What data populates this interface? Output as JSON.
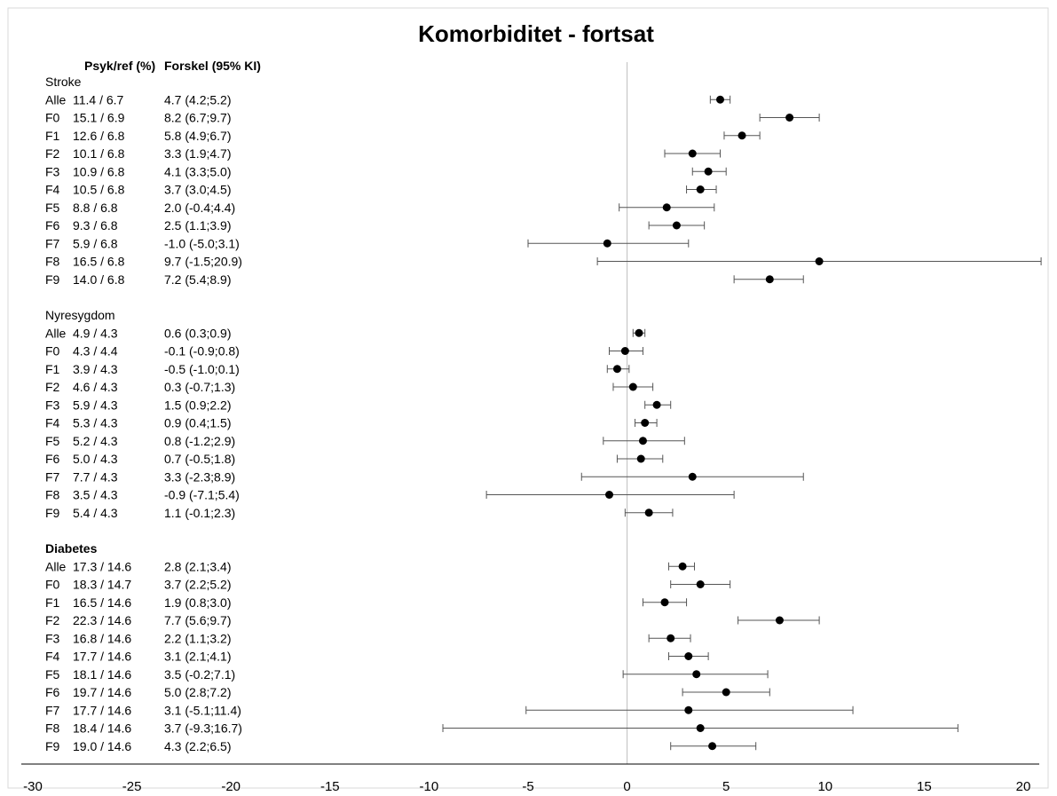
{
  "chart_data": {
    "type": "scatter",
    "subtype": "forest-plot",
    "title": "Komorbiditet - fortsat",
    "column_headers": [
      "Psyk/ref (%)",
      "Forskel (95% KI)"
    ],
    "xlim": [
      -30,
      20
    ],
    "x_ticks": [
      -30,
      -25,
      -20,
      -15,
      -10,
      -5,
      0,
      5,
      10,
      15,
      20
    ],
    "reference_line": 0,
    "grid": false,
    "groups": [
      {
        "name": "Stroke",
        "bold": false,
        "rows": [
          {
            "label": "Alle",
            "ratio": "11.4 / 6.7",
            "ci_text": "4.7 (4.2;5.2)",
            "est": 4.7,
            "lo": 4.2,
            "hi": 5.2
          },
          {
            "label": "F0",
            "ratio": "15.1 / 6.9",
            "ci_text": "8.2 (6.7;9.7)",
            "est": 8.2,
            "lo": 6.7,
            "hi": 9.7
          },
          {
            "label": "F1",
            "ratio": "12.6 / 6.8",
            "ci_text": "5.8 (4.9;6.7)",
            "est": 5.8,
            "lo": 4.9,
            "hi": 6.7
          },
          {
            "label": "F2",
            "ratio": "10.1 / 6.8",
            "ci_text": "3.3 (1.9;4.7)",
            "est": 3.3,
            "lo": 1.9,
            "hi": 4.7
          },
          {
            "label": "F3",
            "ratio": "10.9 / 6.8",
            "ci_text": "4.1 (3.3;5.0)",
            "est": 4.1,
            "lo": 3.3,
            "hi": 5.0
          },
          {
            "label": "F4",
            "ratio": "10.5 / 6.8",
            "ci_text": "3.7 (3.0;4.5)",
            "est": 3.7,
            "lo": 3.0,
            "hi": 4.5
          },
          {
            "label": "F5",
            "ratio": "8.8 / 6.8",
            "ci_text": "2.0 (-0.4;4.4)",
            "est": 2.0,
            "lo": -0.4,
            "hi": 4.4
          },
          {
            "label": "F6",
            "ratio": "9.3 / 6.8",
            "ci_text": "2.5 (1.1;3.9)",
            "est": 2.5,
            "lo": 1.1,
            "hi": 3.9
          },
          {
            "label": "F7",
            "ratio": "5.9 / 6.8",
            "ci_text": "-1.0 (-5.0;3.1)",
            "est": -1.0,
            "lo": -5.0,
            "hi": 3.1
          },
          {
            "label": "F8",
            "ratio": "16.5 / 6.8",
            "ci_text": "9.7 (-1.5;20.9)",
            "est": 9.7,
            "lo": -1.5,
            "hi": 20.9
          },
          {
            "label": "F9",
            "ratio": "14.0 / 6.8",
            "ci_text": "7.2 (5.4;8.9)",
            "est": 7.2,
            "lo": 5.4,
            "hi": 8.9
          }
        ]
      },
      {
        "name": "Nyresygdom",
        "bold": false,
        "rows": [
          {
            "label": "Alle",
            "ratio": "4.9 / 4.3",
            "ci_text": "0.6 (0.3;0.9)",
            "est": 0.6,
            "lo": 0.3,
            "hi": 0.9
          },
          {
            "label": "F0",
            "ratio": "4.3 / 4.4",
            "ci_text": "-0.1 (-0.9;0.8)",
            "est": -0.1,
            "lo": -0.9,
            "hi": 0.8
          },
          {
            "label": "F1",
            "ratio": "3.9 / 4.3",
            "ci_text": "-0.5 (-1.0;0.1)",
            "est": -0.5,
            "lo": -1.0,
            "hi": 0.1
          },
          {
            "label": "F2",
            "ratio": "4.6 / 4.3",
            "ci_text": "0.3 (-0.7;1.3)",
            "est": 0.3,
            "lo": -0.7,
            "hi": 1.3
          },
          {
            "label": "F3",
            "ratio": "5.9 / 4.3",
            "ci_text": "1.5 (0.9;2.2)",
            "est": 1.5,
            "lo": 0.9,
            "hi": 2.2
          },
          {
            "label": "F4",
            "ratio": "5.3 / 4.3",
            "ci_text": "0.9 (0.4;1.5)",
            "est": 0.9,
            "lo": 0.4,
            "hi": 1.5
          },
          {
            "label": "F5",
            "ratio": "5.2 / 4.3",
            "ci_text": "0.8 (-1.2;2.9)",
            "est": 0.8,
            "lo": -1.2,
            "hi": 2.9
          },
          {
            "label": "F6",
            "ratio": "5.0 / 4.3",
            "ci_text": "0.7 (-0.5;1.8)",
            "est": 0.7,
            "lo": -0.5,
            "hi": 1.8
          },
          {
            "label": "F7",
            "ratio": "7.7 / 4.3",
            "ci_text": "3.3 (-2.3;8.9)",
            "est": 3.3,
            "lo": -2.3,
            "hi": 8.9
          },
          {
            "label": "F8",
            "ratio": "3.5 / 4.3",
            "ci_text": "-0.9 (-7.1;5.4)",
            "est": -0.9,
            "lo": -7.1,
            "hi": 5.4
          },
          {
            "label": "F9",
            "ratio": "5.4 / 4.3",
            "ci_text": "1.1 (-0.1;2.3)",
            "est": 1.1,
            "lo": -0.1,
            "hi": 2.3
          }
        ]
      },
      {
        "name": "Diabetes",
        "bold": true,
        "rows": [
          {
            "label": "Alle",
            "ratio": "17.3 / 14.6",
            "ci_text": "2.8 (2.1;3.4)",
            "est": 2.8,
            "lo": 2.1,
            "hi": 3.4
          },
          {
            "label": "F0",
            "ratio": "18.3 / 14.7",
            "ci_text": "3.7 (2.2;5.2)",
            "est": 3.7,
            "lo": 2.2,
            "hi": 5.2
          },
          {
            "label": "F1",
            "ratio": "16.5 / 14.6",
            "ci_text": "1.9 (0.8;3.0)",
            "est": 1.9,
            "lo": 0.8,
            "hi": 3.0
          },
          {
            "label": "F2",
            "ratio": "22.3 / 14.6",
            "ci_text": "7.7 (5.6;9.7)",
            "est": 7.7,
            "lo": 5.6,
            "hi": 9.7
          },
          {
            "label": "F3",
            "ratio": "16.8 / 14.6",
            "ci_text": "2.2 (1.1;3.2)",
            "est": 2.2,
            "lo": 1.1,
            "hi": 3.2
          },
          {
            "label": "F4",
            "ratio": "17.7 / 14.6",
            "ci_text": "3.1 (2.1;4.1)",
            "est": 3.1,
            "lo": 2.1,
            "hi": 4.1
          },
          {
            "label": "F5",
            "ratio": "18.1 / 14.6",
            "ci_text": "3.5 (-0.2;7.1)",
            "est": 3.5,
            "lo": -0.2,
            "hi": 7.1
          },
          {
            "label": "F6",
            "ratio": "19.7 / 14.6",
            "ci_text": "5.0 (2.8;7.2)",
            "est": 5.0,
            "lo": 2.8,
            "hi": 7.2
          },
          {
            "label": "F7",
            "ratio": "17.7 / 14.6",
            "ci_text": "3.1 (-5.1;11.4)",
            "est": 3.1,
            "lo": -5.1,
            "hi": 11.4
          },
          {
            "label": "F8",
            "ratio": "18.4 / 14.6",
            "ci_text": "3.7 (-9.3;16.7)",
            "est": 3.7,
            "lo": -9.3,
            "hi": 16.7
          },
          {
            "label": "F9",
            "ratio": "19.0 / 14.6",
            "ci_text": "4.3 (2.2;6.5)",
            "est": 4.3,
            "lo": 2.2,
            "hi": 6.5
          }
        ]
      }
    ],
    "colors": {
      "marker": "#000000",
      "whisker": "#555555",
      "reference_line": "#bfbfbf",
      "axis": "#000000",
      "frame": "#d9d9d9"
    }
  }
}
